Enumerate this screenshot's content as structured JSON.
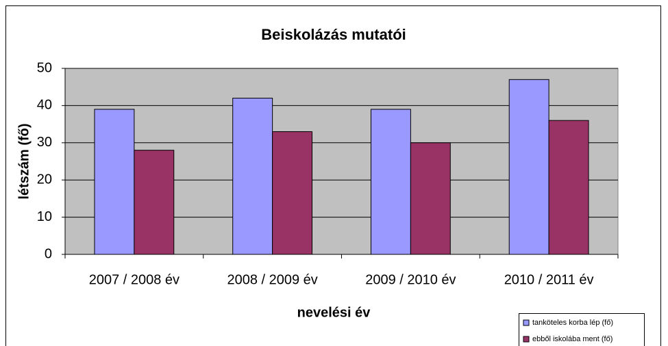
{
  "chart_data": {
    "type": "bar",
    "title": "Beiskolázás mutatói",
    "xlabel": "nevelési év",
    "ylabel": "létszám (fő)",
    "categories": [
      "2007 / 2008 év",
      "2008 / 2009 év",
      "2009 / 2010 év",
      "2010 / 2011 év"
    ],
    "series": [
      {
        "name": "tanköteles korba lép (fő)",
        "color": "#9999ff",
        "values": [
          39,
          42,
          39,
          47
        ]
      },
      {
        "name": "ebből iskolába ment (fő)",
        "color": "#993366",
        "values": [
          28,
          33,
          30,
          36
        ]
      }
    ],
    "ylim": [
      0,
      50
    ],
    "yticks": [
      0,
      10,
      20,
      30,
      40,
      50
    ],
    "grid": true
  }
}
